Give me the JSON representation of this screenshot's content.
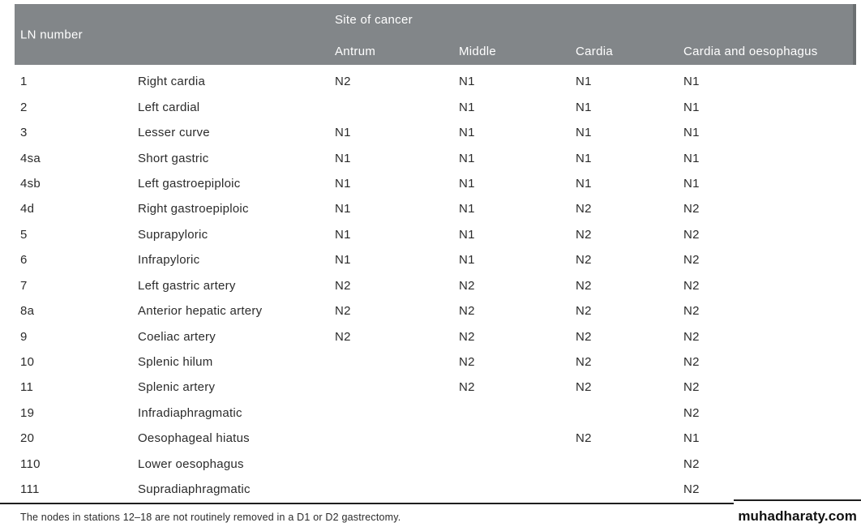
{
  "table": {
    "header": {
      "ln_number_label": "LN number",
      "site_of_cancer_label": "Site of cancer",
      "columns": [
        "Antrum",
        "Middle",
        "Cardia",
        "Cardia and oesophagus"
      ]
    },
    "rows": [
      {
        "ln": "1",
        "name": "Right cardia",
        "antrum": "N2",
        "middle": "N1",
        "cardia": "N1",
        "cardia_oesophagus": "N1"
      },
      {
        "ln": "2",
        "name": "Left cardial",
        "antrum": "",
        "middle": "N1",
        "cardia": "N1",
        "cardia_oesophagus": "N1"
      },
      {
        "ln": "3",
        "name": "Lesser curve",
        "antrum": "N1",
        "middle": "N1",
        "cardia": "N1",
        "cardia_oesophagus": "N1"
      },
      {
        "ln": "4sa",
        "name": "Short gastric",
        "antrum": "N1",
        "middle": "N1",
        "cardia": "N1",
        "cardia_oesophagus": "N1"
      },
      {
        "ln": "4sb",
        "name": "Left gastroepiploic",
        "antrum": "N1",
        "middle": "N1",
        "cardia": "N1",
        "cardia_oesophagus": "N1"
      },
      {
        "ln": "4d",
        "name": "Right gastroepiploic",
        "antrum": "N1",
        "middle": "N1",
        "cardia": "N2",
        "cardia_oesophagus": "N2"
      },
      {
        "ln": "5",
        "name": "Suprapyloric",
        "antrum": "N1",
        "middle": "N1",
        "cardia": "N2",
        "cardia_oesophagus": "N2"
      },
      {
        "ln": "6",
        "name": "Infrapyloric",
        "antrum": "N1",
        "middle": "N1",
        "cardia": "N2",
        "cardia_oesophagus": "N2"
      },
      {
        "ln": "7",
        "name": "Left gastric artery",
        "antrum": "N2",
        "middle": "N2",
        "cardia": "N2",
        "cardia_oesophagus": "N2"
      },
      {
        "ln": "8a",
        "name": "Anterior hepatic artery",
        "antrum": "N2",
        "middle": "N2",
        "cardia": "N2",
        "cardia_oesophagus": "N2"
      },
      {
        "ln": "9",
        "name": "Coeliac artery",
        "antrum": "N2",
        "middle": "N2",
        "cardia": "N2",
        "cardia_oesophagus": "N2"
      },
      {
        "ln": "10",
        "name": "Splenic hilum",
        "antrum": "",
        "middle": "N2",
        "cardia": "N2",
        "cardia_oesophagus": "N2"
      },
      {
        "ln": "11",
        "name": "Splenic artery",
        "antrum": "",
        "middle": "N2",
        "cardia": "N2",
        "cardia_oesophagus": "N2"
      },
      {
        "ln": "19",
        "name": "Infradiaphragmatic",
        "antrum": "",
        "middle": "",
        "cardia": "",
        "cardia_oesophagus": "N2"
      },
      {
        "ln": "20",
        "name": "Oesophageal hiatus",
        "antrum": "",
        "middle": "",
        "cardia": "N2",
        "cardia_oesophagus": "N1"
      },
      {
        "ln": "110",
        "name": "Lower oesophagus",
        "antrum": "",
        "middle": "",
        "cardia": "",
        "cardia_oesophagus": "N2"
      },
      {
        "ln": "111",
        "name": "Supradiaphragmatic",
        "antrum": "",
        "middle": "",
        "cardia": "",
        "cardia_oesophagus": "N2"
      }
    ],
    "footnote": "The nodes in stations 12–18 are not routinely removed in a D1 or D2 gastrectomy."
  },
  "watermark": "muhadharaty.com",
  "colors": {
    "header_bg": "#828689",
    "header_text": "#ffffff",
    "body_text": "#2b2b2b",
    "rule": "#1e1e1e"
  }
}
